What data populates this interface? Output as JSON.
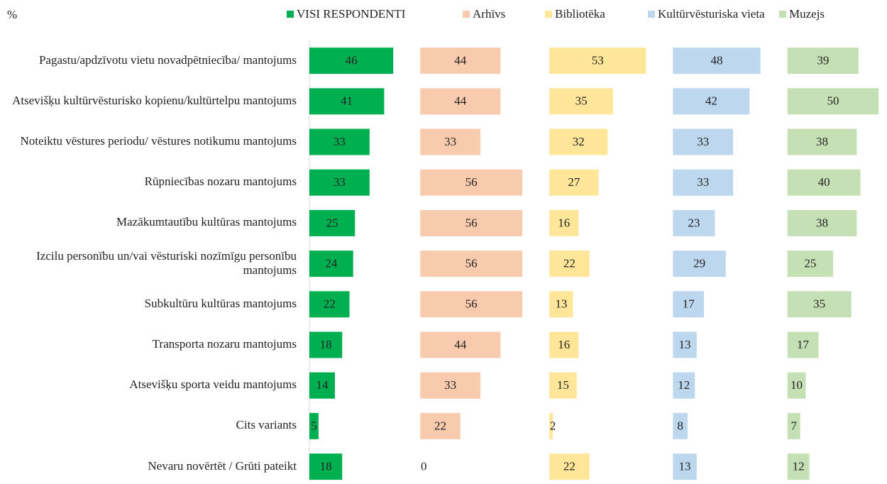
{
  "chart_data": {
    "type": "bar",
    "orientation": "horizontal",
    "layout": "panels",
    "unit": "%",
    "categories": [
      "Pagastu/apdzīvotu vietu novadpētniecība/ mantojums",
      "Atsevišķu kultūrvēsturisko kopienu/kultūrtelpu mantojums",
      "Noteiktu vēstures periodu/ vēstures notikumu mantojums",
      "Rūpniecības nozaru mantojums",
      "Mazākumtautību kultūras mantojums",
      "Izcilu personību un/vai vēsturiski nozīmīgu personību mantojums",
      "Subkultūru kultūras mantojums",
      "Transporta nozaru mantojums",
      "Atsevišķu sporta veidu mantojums",
      "Cits variants",
      "Nevaru novērtēt / Grūti pateikt"
    ],
    "series": [
      {
        "name": "VISI RESPONDENTI",
        "color": "#00b050",
        "values": [
          46,
          41,
          33,
          33,
          25,
          24,
          22,
          18,
          14,
          5,
          18
        ]
      },
      {
        "name": "Arhīvs",
        "color": "#f8cbad",
        "values": [
          44,
          44,
          33,
          56,
          56,
          56,
          56,
          44,
          33,
          22,
          0
        ]
      },
      {
        "name": "Bibliotēka",
        "color": "#ffe699",
        "values": [
          53,
          35,
          32,
          27,
          16,
          22,
          13,
          16,
          15,
          2,
          22
        ]
      },
      {
        "name": "Kultūrvēsturiska vieta",
        "color": "#bdd7ee",
        "values": [
          48,
          42,
          33,
          33,
          23,
          29,
          17,
          13,
          12,
          8,
          13
        ]
      },
      {
        "name": "Muzejs",
        "color": "#c5e0b4",
        "values": [
          39,
          50,
          38,
          40,
          38,
          25,
          35,
          17,
          10,
          7,
          12
        ]
      }
    ],
    "data_labels": true
  }
}
